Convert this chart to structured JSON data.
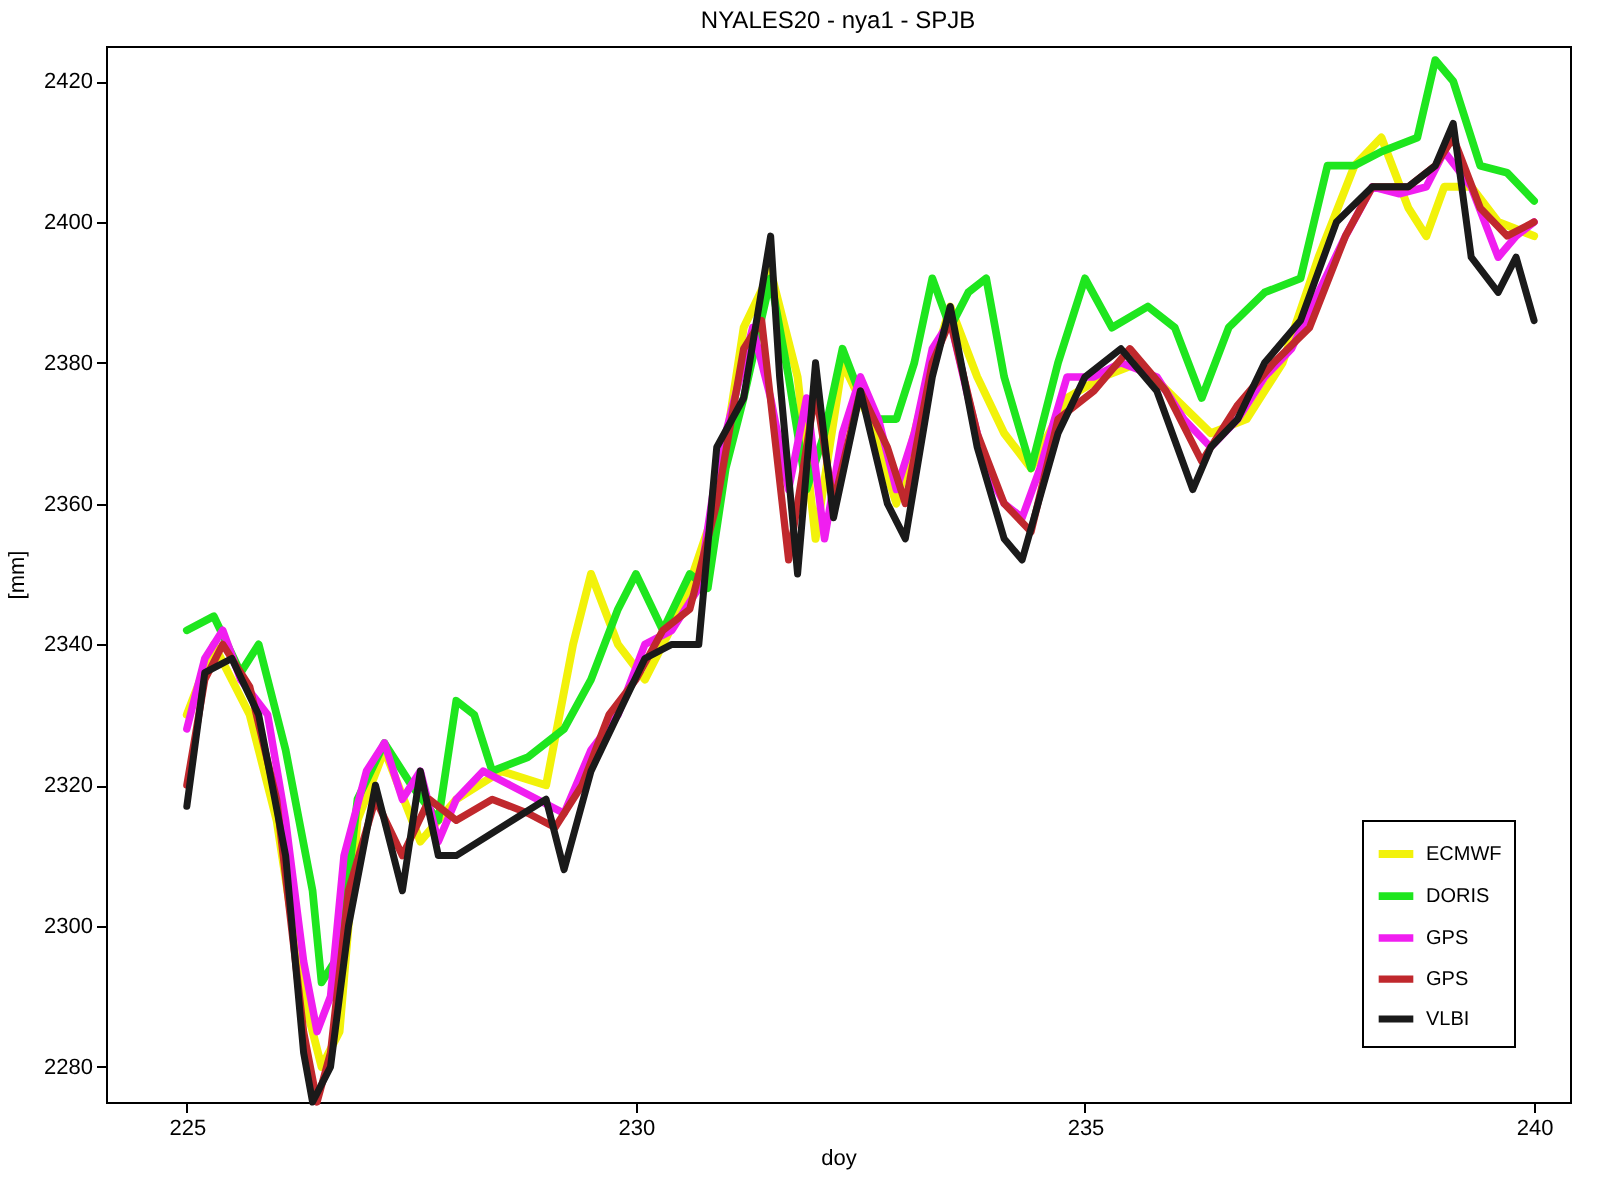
{
  "chart_data": {
    "type": "line",
    "title": "NYALES20 - nya1 - SPJB",
    "xlabel": "doy",
    "ylabel": "[mm]",
    "xlim": [
      224.1,
      240.4
    ],
    "ylim": [
      2275,
      2425
    ],
    "xticks": [
      225,
      230,
      235,
      240
    ],
    "yticks": [
      2280,
      2300,
      2320,
      2340,
      2360,
      2380,
      2400,
      2420
    ],
    "grid": false,
    "legend": "bottom right",
    "line_style": "solid",
    "series": [
      {
        "name": "ECMWF",
        "color": "#f2f20a",
        "x": [
          225,
          225.3,
          225.7,
          226.0,
          226.3,
          226.5,
          226.7,
          226.9,
          227.2,
          227.6,
          228.0,
          228.5,
          229.0,
          229.3,
          229.5,
          229.8,
          230.1,
          230.5,
          230.9,
          231.2,
          231.5,
          231.8,
          232.0,
          232.3,
          232.6,
          232.9,
          233.2,
          233.5,
          233.8,
          234.1,
          234.4,
          234.8,
          235.2,
          235.6,
          236.0,
          236.4,
          236.8,
          237.2,
          237.6,
          238.0,
          238.3,
          238.6,
          238.8,
          239.0,
          239.3,
          239.6,
          240.0
        ],
        "values": [
          2330,
          2340,
          2330,
          2315,
          2290,
          2280,
          2285,
          2315,
          2325,
          2312,
          2318,
          2322,
          2320,
          2340,
          2350,
          2340,
          2335,
          2345,
          2360,
          2385,
          2393,
          2378,
          2355,
          2380,
          2372,
          2360,
          2375,
          2388,
          2378,
          2370,
          2365,
          2375,
          2378,
          2380,
          2375,
          2370,
          2372,
          2380,
          2395,
          2408,
          2412,
          2402,
          2398,
          2405,
          2405,
          2400,
          2398
        ]
      },
      {
        "name": "DORIS",
        "color": "#1ee61e",
        "x": [
          225,
          225.3,
          225.6,
          225.8,
          226.1,
          226.4,
          226.5,
          226.7,
          226.9,
          227.2,
          227.5,
          227.8,
          228.0,
          228.2,
          228.4,
          228.8,
          229.2,
          229.5,
          229.8,
          230.0,
          230.3,
          230.6,
          230.8,
          231.0,
          231.2,
          231.5,
          231.7,
          231.9,
          232.1,
          232.3,
          232.6,
          232.9,
          233.1,
          233.3,
          233.5,
          233.7,
          233.9,
          234.1,
          234.4,
          234.7,
          235.0,
          235.3,
          235.7,
          236.0,
          236.3,
          236.6,
          237.0,
          237.4,
          237.7,
          238.0,
          238.3,
          238.7,
          238.9,
          239.1,
          239.4,
          239.7,
          240.0
        ],
        "values": [
          2342,
          2344,
          2336,
          2340,
          2325,
          2305,
          2292,
          2296,
          2318,
          2326,
          2320,
          2315,
          2332,
          2330,
          2322,
          2324,
          2328,
          2335,
          2345,
          2350,
          2342,
          2350,
          2348,
          2365,
          2375,
          2392,
          2378,
          2362,
          2370,
          2382,
          2372,
          2372,
          2380,
          2392,
          2385,
          2390,
          2392,
          2378,
          2365,
          2380,
          2392,
          2385,
          2388,
          2385,
          2375,
          2385,
          2390,
          2392,
          2408,
          2408,
          2410,
          2412,
          2423,
          2420,
          2408,
          2407,
          2403
        ]
      },
      {
        "name": "GPS",
        "color": "#f01ef0",
        "x": [
          225.0,
          225.2,
          225.4,
          225.6,
          225.9,
          226.1,
          226.3,
          226.45,
          226.6,
          226.75,
          227.0,
          227.2,
          227.4,
          227.6,
          227.8,
          228.0,
          228.3,
          228.6,
          228.9,
          229.2,
          229.5,
          229.8,
          230.1,
          230.4,
          230.7,
          230.9,
          231.1,
          231.3,
          231.5,
          231.7,
          231.9,
          232.1,
          232.3,
          232.5,
          232.7,
          232.9,
          233.1,
          233.3,
          233.5,
          233.7,
          233.9,
          234.1,
          234.3,
          234.5,
          234.8,
          235.1,
          235.4,
          235.8,
          236.1,
          236.4,
          236.7,
          237.0,
          237.3,
          237.6,
          237.9,
          238.2,
          238.5,
          238.8,
          239.0,
          239.3,
          239.6,
          239.8,
          240.0
        ],
        "values": [
          2328,
          2338,
          2342,
          2335,
          2330,
          2315,
          2295,
          2285,
          2290,
          2310,
          2322,
          2326,
          2318,
          2322,
          2312,
          2318,
          2322,
          2320,
          2318,
          2316,
          2325,
          2330,
          2340,
          2342,
          2348,
          2365,
          2375,
          2385,
          2375,
          2362,
          2375,
          2355,
          2370,
          2378,
          2372,
          2362,
          2370,
          2382,
          2386,
          2375,
          2365,
          2360,
          2358,
          2365,
          2378,
          2378,
          2380,
          2378,
          2372,
          2368,
          2372,
          2378,
          2382,
          2390,
          2398,
          2405,
          2404,
          2405,
          2410,
          2405,
          2395,
          2398,
          2400
        ]
      },
      {
        "name": "GPS",
        "color": "#c0282d",
        "x": [
          225,
          225.2,
          225.4,
          225.7,
          226.0,
          226.3,
          226.45,
          226.6,
          226.8,
          227.1,
          227.4,
          227.7,
          228.0,
          228.4,
          228.8,
          229.1,
          229.4,
          229.7,
          230.0,
          230.3,
          230.6,
          230.9,
          231.2,
          231.4,
          231.7,
          232.0,
          232.2,
          232.5,
          232.8,
          233.0,
          233.3,
          233.5,
          233.8,
          234.1,
          234.4,
          234.7,
          235.1,
          235.5,
          235.9,
          236.3,
          236.7,
          237.1,
          237.5,
          237.9,
          238.2,
          238.6,
          238.9,
          239.1,
          239.4,
          239.7,
          240.0
        ],
        "values": [
          2320,
          2335,
          2340,
          2334,
          2318,
          2285,
          2275,
          2282,
          2305,
          2318,
          2310,
          2318,
          2315,
          2318,
          2316,
          2314,
          2320,
          2330,
          2335,
          2342,
          2345,
          2360,
          2382,
          2386,
          2352,
          2376,
          2360,
          2376,
          2368,
          2360,
          2380,
          2386,
          2370,
          2360,
          2356,
          2372,
          2376,
          2382,
          2376,
          2366,
          2374,
          2380,
          2385,
          2398,
          2405,
          2405,
          2408,
          2412,
          2402,
          2398,
          2400
        ]
      },
      {
        "name": "VLBI",
        "color": "#1a1a1a",
        "x": [
          225,
          225.2,
          225.5,
          225.8,
          226.1,
          226.3,
          226.4,
          226.6,
          226.8,
          227.1,
          227.4,
          227.6,
          227.8,
          228.0,
          229.0,
          229.2,
          229.5,
          229.8,
          230.1,
          230.4,
          230.7,
          230.9,
          231.2,
          231.5,
          231.6,
          231.8,
          232.0,
          232.2,
          232.5,
          232.8,
          233.0,
          233.3,
          233.5,
          233.8,
          234.1,
          234.3,
          234.7,
          235.0,
          235.4,
          235.8,
          236.2,
          236.4,
          236.7,
          237.0,
          237.4,
          237.8,
          238.2,
          238.6,
          238.9,
          239.1,
          239.3,
          239.6,
          239.8,
          240.0
        ],
        "values": [
          2317,
          2336,
          2338,
          2330,
          2310,
          2282,
          2275,
          2280,
          2300,
          2320,
          2305,
          2322,
          2310,
          2310,
          2318,
          2308,
          2322,
          2330,
          2338,
          2340,
          2340,
          2368,
          2375,
          2398,
          2378,
          2350,
          2380,
          2358,
          2376,
          2360,
          2355,
          2378,
          2388,
          2368,
          2355,
          2352,
          2370,
          2378,
          2382,
          2376,
          2362,
          2368,
          2372,
          2380,
          2386,
          2400,
          2405,
          2405,
          2408,
          2414,
          2395,
          2390,
          2395,
          2386
        ]
      }
    ]
  }
}
